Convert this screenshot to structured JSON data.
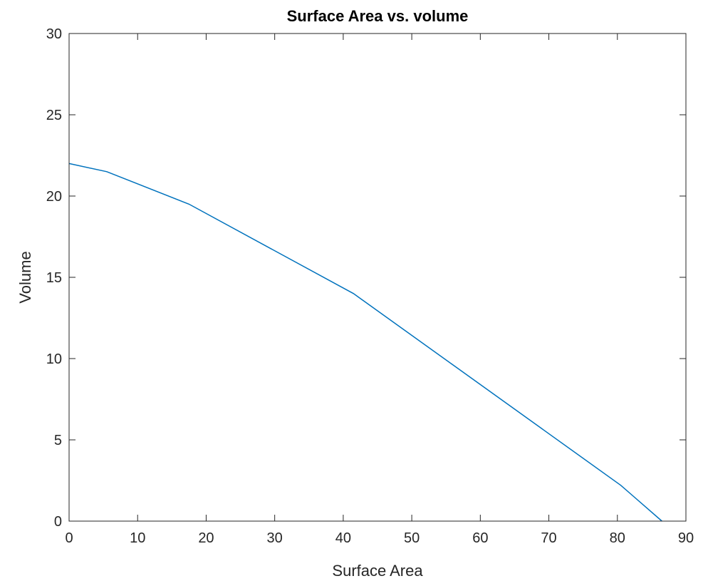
{
  "chart_data": {
    "type": "line",
    "title": "Surface Area vs. volume",
    "xlabel": "Surface Area",
    "ylabel": "Volume",
    "xlim": [
      0,
      90
    ],
    "ylim": [
      0,
      30
    ],
    "xticks": [
      "0",
      "10",
      "20",
      "30",
      "40",
      "50",
      "60",
      "70",
      "80",
      "90"
    ],
    "yticks": [
      "0",
      "5",
      "10",
      "15",
      "20",
      "25",
      "30"
    ],
    "grid": false,
    "box": true,
    "line_color": "#0072BD",
    "series": [
      {
        "x": [
          0,
          5.5,
          17.5,
          41.5,
          80.5,
          86.5
        ],
        "y": [
          22.0,
          21.5,
          19.5,
          14.0,
          2.2,
          0.0
        ]
      }
    ]
  }
}
